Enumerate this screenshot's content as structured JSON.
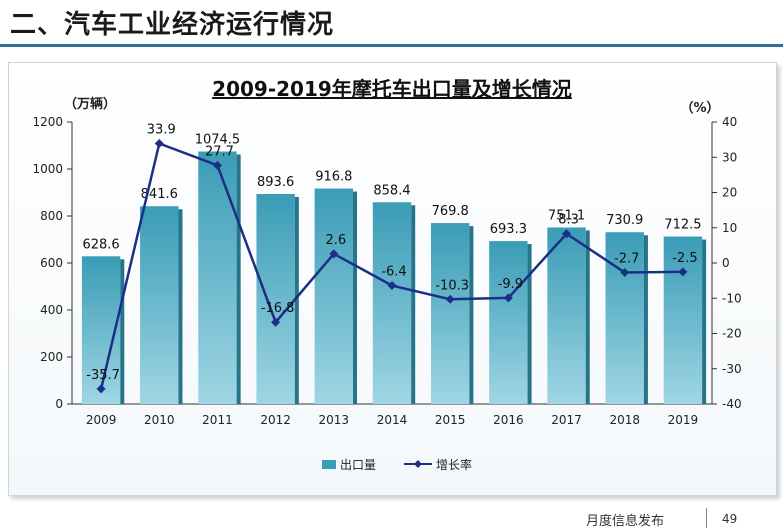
{
  "slide": {
    "title": "二、汽车工业经济运行情况",
    "footer": "月度信息发布",
    "page_number": "49"
  },
  "colors": {
    "bar": "#3a9cb6",
    "bar_light": "#9fd6e4",
    "line": "#1c2f86",
    "title_rule": "#2e6f9e"
  },
  "chart_data": {
    "type": "bar",
    "title": "2009-2019年摩托车出口量及增长情况",
    "ylabel_left": "（万辆）",
    "ylabel_right": "（%）",
    "categories": [
      "2009",
      "2010",
      "2011",
      "2012",
      "2013",
      "2014",
      "2015",
      "2016",
      "2017",
      "2018",
      "2019"
    ],
    "ylim_left": [
      0,
      1200
    ],
    "yticks_left": [
      0,
      200,
      400,
      600,
      800,
      1000,
      1200
    ],
    "ylim_right": [
      -40,
      40
    ],
    "yticks_right": [
      -40,
      -30,
      -20,
      -10,
      0,
      10,
      20,
      30,
      40
    ],
    "series": [
      {
        "name": "出口量",
        "type": "bar",
        "axis": "left",
        "values": [
          628.6,
          841.6,
          1074.5,
          893.6,
          916.8,
          858.4,
          769.8,
          693.3,
          751.1,
          730.9,
          712.5
        ],
        "labels": [
          "628.6",
          "841.6",
          "1074.5",
          "893.6",
          "916.8",
          "858.4",
          "769.8",
          "693.3",
          "751.1",
          "730.9",
          "712.5"
        ]
      },
      {
        "name": "增长率",
        "type": "line",
        "axis": "right",
        "values": [
          -35.7,
          33.9,
          27.7,
          -16.8,
          2.6,
          -6.4,
          -10.3,
          -9.9,
          8.3,
          -2.7,
          -2.5
        ],
        "labels": [
          "-35.7",
          "33.9",
          "27.7",
          "-16.8",
          "2.6",
          "-6.4",
          "-10.3",
          "-9.9",
          "8.3",
          "-2.7",
          "-2.5"
        ]
      }
    ],
    "legend": "bottom",
    "grid": false
  }
}
